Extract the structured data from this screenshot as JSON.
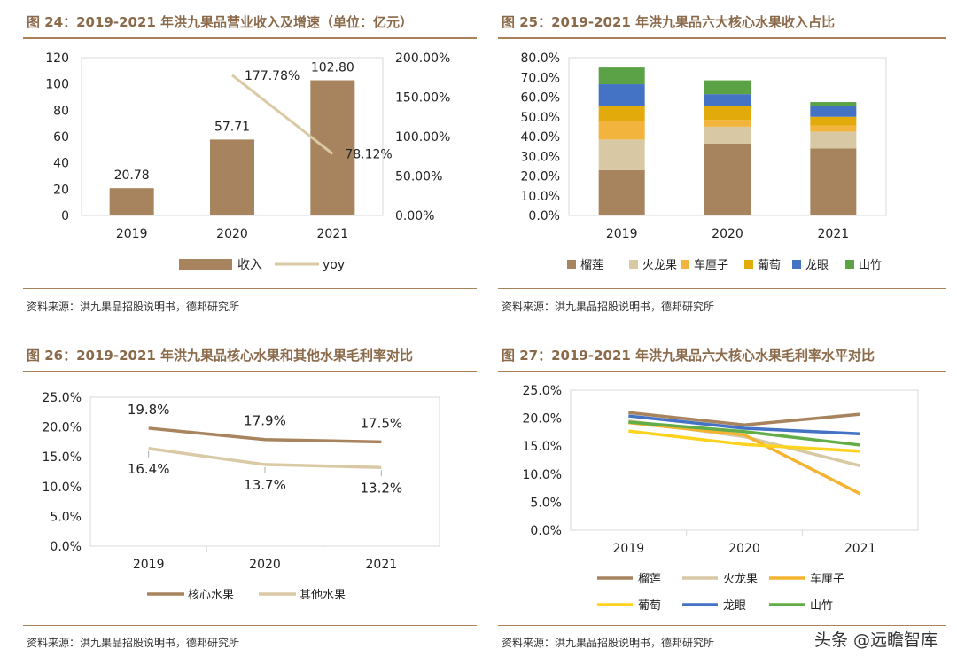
{
  "figures": {
    "fig24": {
      "title": "图 24：2019-2021 年洪九果品营业收入及增速（单位：亿元）",
      "source": "资料来源：洪九果品招股说明书，德邦研究所"
    },
    "fig25": {
      "title": "图 25：2019-2021 年洪九果品六大核心水果收入占比",
      "source": "资料来源：洪九果品招股说明书，德邦研究所"
    },
    "fig26": {
      "title": "图 26：2019-2021 年洪九果品核心水果和其他水果毛利率对比",
      "source": "资料来源：洪九果品招股说明书，德邦研究所"
    },
    "fig27": {
      "title": "图 27：2019-2021 年洪九果品六大核心水果毛利率水平对比",
      "source": "资料来源：洪九果品招股说明书，德邦研究所"
    }
  },
  "watermark": "头条 @远瞻智库",
  "chart_data": [
    {
      "id": "fig24",
      "type": "bar",
      "title": "2019-2021 年洪九果品营业收入及增速（单位：亿元）",
      "categories": [
        "2019",
        "2020",
        "2021"
      ],
      "series": [
        {
          "name": "收入",
          "type": "bar",
          "axis": "left",
          "values": [
            20.78,
            57.71,
            102.8
          ],
          "labels": [
            "20.78",
            "57.71",
            "102.80"
          ],
          "color": "#a8845e"
        },
        {
          "name": "yoy",
          "type": "line",
          "axis": "right",
          "values": [
            null,
            177.78,
            78.12
          ],
          "labels": [
            "",
            "177.78%",
            "78.12%"
          ],
          "color": "#dac9a5"
        }
      ],
      "ylim": [
        0,
        120
      ],
      "yticks": [
        0,
        20,
        40,
        60,
        80,
        100,
        120
      ],
      "y2lim": [
        0,
        200
      ],
      "y2ticks": [
        "0.00%",
        "50.00%",
        "100.00%",
        "150.00%",
        "200.00%"
      ],
      "legend": "bottom"
    },
    {
      "id": "fig25",
      "type": "bar",
      "stacked": true,
      "title": "2019-2021 年洪九果品六大核心水果收入占比",
      "categories": [
        "2019",
        "2020",
        "2021"
      ],
      "series": [
        {
          "name": "榴莲",
          "values": [
            23.0,
            36.5,
            34.0
          ],
          "color": "#a8845e"
        },
        {
          "name": "火龙果",
          "values": [
            15.5,
            8.5,
            8.5
          ],
          "color": "#d8c8a4"
        },
        {
          "name": "车厘子",
          "values": [
            9.5,
            3.5,
            3.0
          ],
          "color": "#f2b43c"
        },
        {
          "name": "葡萄",
          "values": [
            7.5,
            7.0,
            4.5
          ],
          "color": "#e3aa0b"
        },
        {
          "name": "龙眼",
          "values": [
            11.0,
            6.0,
            5.5
          ],
          "color": "#4472c4"
        },
        {
          "name": "山竹",
          "values": [
            8.5,
            7.0,
            2.0
          ],
          "color": "#5ba246"
        }
      ],
      "ylim": [
        0,
        80
      ],
      "yticks": [
        "0.0%",
        "10.0%",
        "20.0%",
        "30.0%",
        "40.0%",
        "50.0%",
        "60.0%",
        "70.0%",
        "80.0%"
      ],
      "legend": "bottom"
    },
    {
      "id": "fig26",
      "type": "line",
      "title": "2019-2021 年洪九果品核心水果和其他水果毛利率对比",
      "categories": [
        "2019",
        "2020",
        "2021"
      ],
      "series": [
        {
          "name": "核心水果",
          "values": [
            19.8,
            17.9,
            17.5
          ],
          "labels": [
            "19.8%",
            "17.9%",
            "17.5%"
          ],
          "color": "#a8845e"
        },
        {
          "name": "其他水果",
          "values": [
            16.4,
            13.7,
            13.2
          ],
          "labels": [
            "16.4%",
            "13.7%",
            "13.2%"
          ],
          "color": "#dac9a5"
        }
      ],
      "ylim": [
        0,
        25
      ],
      "yticks": [
        "0.0%",
        "5.0%",
        "10.0%",
        "15.0%",
        "20.0%",
        "25.0%"
      ],
      "legend": "bottom"
    },
    {
      "id": "fig27",
      "type": "line",
      "title": "2019-2021 年洪九果品六大核心水果毛利率水平对比",
      "categories": [
        "2019",
        "2020",
        "2021"
      ],
      "series": [
        {
          "name": "榴莲",
          "values": [
            21.0,
            18.8,
            20.7
          ],
          "color": "#a8845e"
        },
        {
          "name": "火龙果",
          "values": [
            19.5,
            16.7,
            11.5
          ],
          "color": "#d8c8a4"
        },
        {
          "name": "车厘子",
          "values": [
            19.2,
            17.0,
            6.5
          ],
          "color": "#f5b330"
        },
        {
          "name": "葡萄",
          "values": [
            17.7,
            15.3,
            14.1
          ],
          "color": "#ffd21f"
        },
        {
          "name": "龙眼",
          "values": [
            20.4,
            18.2,
            17.2
          ],
          "color": "#4472c4"
        },
        {
          "name": "山竹",
          "values": [
            19.3,
            17.6,
            15.2
          ],
          "color": "#62ad47"
        }
      ],
      "ylim": [
        0,
        25
      ],
      "yticks": [
        "0.0%",
        "5.0%",
        "10.0%",
        "15.0%",
        "20.0%",
        "25.0%"
      ],
      "legend": "bottom"
    }
  ]
}
